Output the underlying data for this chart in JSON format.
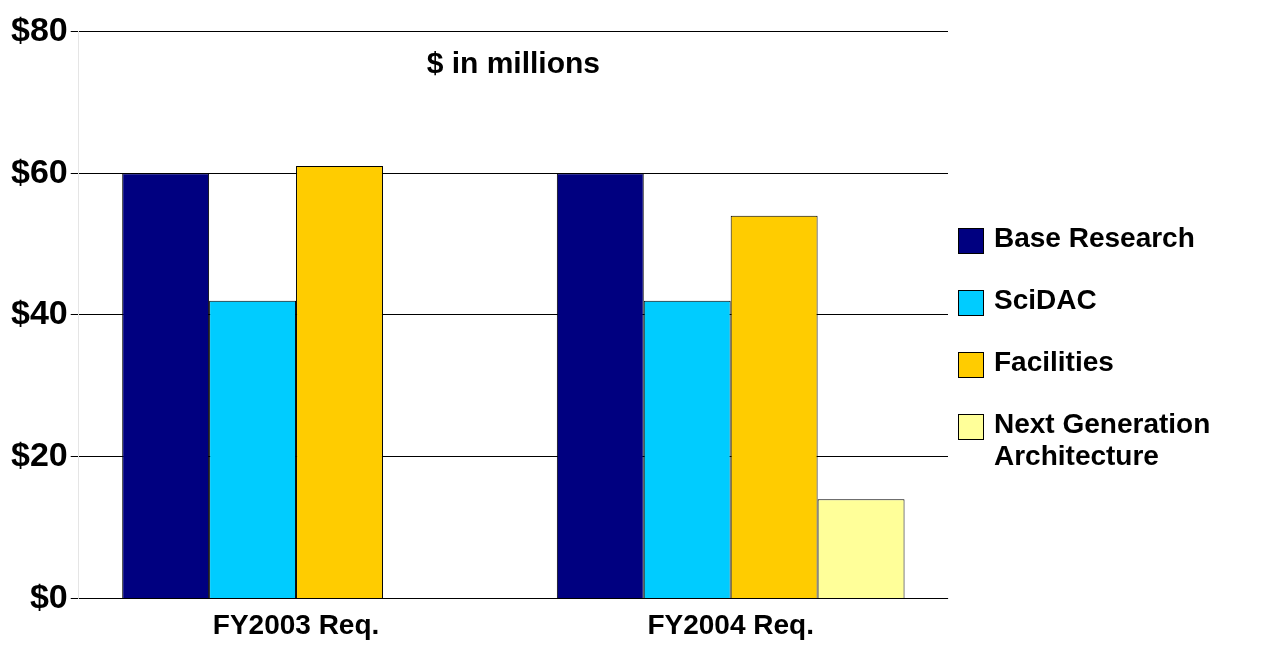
{
  "chart_data": {
    "type": "bar",
    "categories": [
      "FY2003 Req.",
      "FY2004 Req."
    ],
    "series": [
      {
        "name": "Base Research",
        "color": "#000080",
        "values": [
          60,
          60
        ]
      },
      {
        "name": "SciDAC",
        "color": "#00ccff",
        "values": [
          42,
          42
        ]
      },
      {
        "name": "Facilities",
        "color": "#ffcc00",
        "values": [
          61,
          54
        ]
      },
      {
        "name": "Next Generation Architecture",
        "color": "#ffff99",
        "values": [
          null,
          14
        ]
      }
    ],
    "ylim": [
      0,
      80
    ],
    "yticks": [
      {
        "value": 0,
        "label": "$0"
      },
      {
        "value": 20,
        "label": "$20"
      },
      {
        "value": 40,
        "label": "$40"
      },
      {
        "value": 60,
        "label": "$60"
      },
      {
        "value": 80,
        "label": "$80"
      }
    ],
    "grid": "y",
    "legend": "right",
    "annotations": [
      "$ in millions"
    ]
  }
}
